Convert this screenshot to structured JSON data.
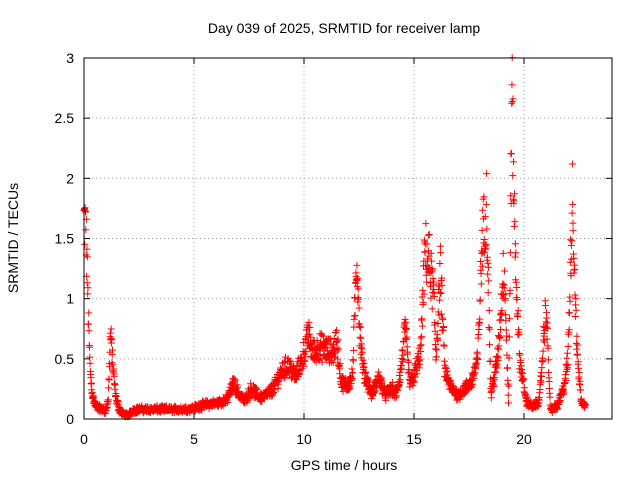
{
  "chart_data": {
    "type": "scatter",
    "title": "Day 039 of 2025, SRMTID for receiver lamp",
    "xlabel": "GPS time / hours",
    "ylabel": "SRMTID / TECUs",
    "xlim": [
      0,
      24
    ],
    "ylim": [
      0,
      3
    ],
    "xticks": [
      0,
      5,
      10,
      15,
      20
    ],
    "xtick_labels": [
      "0",
      "5",
      "10",
      "15",
      "20"
    ],
    "yticks": [
      0,
      0.5,
      1,
      1.5,
      2,
      2.5,
      3
    ],
    "ytick_labels": [
      "0",
      "0.5",
      "1",
      "1.5",
      "2",
      "2.5",
      "3"
    ],
    "grid": true,
    "marker": "plus",
    "color": "#ff0000",
    "series": [
      {
        "name": "SRMTID",
        "profile": [
          [
            0.0,
            1.65
          ],
          [
            0.05,
            1.62
          ],
          [
            0.1,
            1.5
          ],
          [
            0.15,
            1.2
          ],
          [
            0.2,
            0.85
          ],
          [
            0.25,
            0.55
          ],
          [
            0.3,
            0.35
          ],
          [
            0.4,
            0.18
          ],
          [
            0.5,
            0.12
          ],
          [
            0.6,
            0.1
          ],
          [
            0.8,
            0.08
          ],
          [
            1.0,
            0.07
          ],
          [
            1.1,
            0.15
          ],
          [
            1.2,
            0.7
          ],
          [
            1.28,
            0.55
          ],
          [
            1.35,
            0.35
          ],
          [
            1.45,
            0.18
          ],
          [
            1.6,
            0.08
          ],
          [
            1.8,
            0.04
          ],
          [
            2.0,
            0.03
          ],
          [
            2.2,
            0.07
          ],
          [
            2.5,
            0.08
          ],
          [
            3.0,
            0.08
          ],
          [
            3.5,
            0.08
          ],
          [
            4.0,
            0.08
          ],
          [
            4.5,
            0.08
          ],
          [
            5.0,
            0.09
          ],
          [
            5.5,
            0.12
          ],
          [
            6.0,
            0.13
          ],
          [
            6.5,
            0.16
          ],
          [
            6.8,
            0.3
          ],
          [
            7.0,
            0.22
          ],
          [
            7.3,
            0.15
          ],
          [
            7.6,
            0.25
          ],
          [
            8.0,
            0.18
          ],
          [
            8.3,
            0.2
          ],
          [
            8.6,
            0.25
          ],
          [
            9.0,
            0.4
          ],
          [
            9.3,
            0.45
          ],
          [
            9.6,
            0.35
          ],
          [
            9.9,
            0.48
          ],
          [
            10.2,
            0.7
          ],
          [
            10.4,
            0.55
          ],
          [
            10.7,
            0.6
          ],
          [
            11.0,
            0.58
          ],
          [
            11.3,
            0.55
          ],
          [
            11.5,
            0.65
          ],
          [
            11.7,
            0.3
          ],
          [
            12.0,
            0.28
          ],
          [
            12.2,
            0.35
          ],
          [
            12.4,
            1.35
          ],
          [
            12.55,
            0.7
          ],
          [
            12.7,
            0.4
          ],
          [
            12.9,
            0.3
          ],
          [
            13.1,
            0.2
          ],
          [
            13.4,
            0.35
          ],
          [
            13.7,
            0.2
          ],
          [
            14.0,
            0.25
          ],
          [
            14.2,
            0.2
          ],
          [
            14.4,
            0.4
          ],
          [
            14.6,
            0.75
          ],
          [
            14.8,
            0.3
          ],
          [
            15.0,
            0.35
          ],
          [
            15.3,
            0.55
          ],
          [
            15.5,
            1.4
          ],
          [
            15.7,
            1.3
          ],
          [
            15.9,
            1.0
          ],
          [
            16.0,
            0.5
          ],
          [
            16.2,
            1.25
          ],
          [
            16.4,
            0.4
          ],
          [
            16.7,
            0.25
          ],
          [
            17.0,
            0.2
          ],
          [
            17.3,
            0.25
          ],
          [
            17.6,
            0.3
          ],
          [
            17.9,
            0.5
          ],
          [
            18.1,
            1.5
          ],
          [
            18.3,
            1.78
          ],
          [
            18.5,
            0.2
          ],
          [
            18.8,
            0.5
          ],
          [
            19.1,
            1.3
          ],
          [
            19.3,
            0.1
          ],
          [
            19.45,
            2.7
          ],
          [
            19.6,
            1.4
          ],
          [
            19.8,
            0.5
          ],
          [
            20.1,
            0.15
          ],
          [
            20.4,
            0.1
          ],
          [
            20.7,
            0.15
          ],
          [
            21.0,
            0.95
          ],
          [
            21.2,
            0.08
          ],
          [
            21.5,
            0.1
          ],
          [
            21.8,
            0.25
          ],
          [
            22.0,
            0.5
          ],
          [
            22.2,
            1.85
          ],
          [
            22.4,
            0.6
          ],
          [
            22.6,
            0.15
          ],
          [
            22.8,
            0.1
          ]
        ]
      }
    ]
  }
}
